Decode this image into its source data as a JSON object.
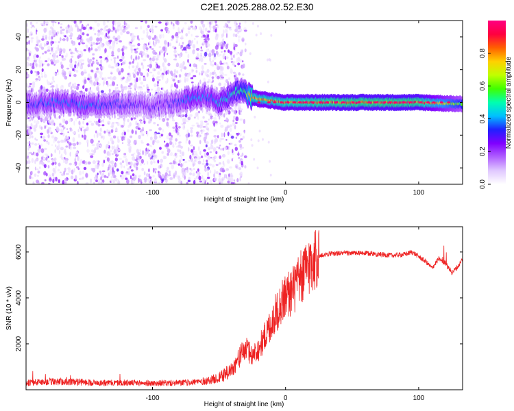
{
  "title": "C2E1.2025.288.02.52.E30",
  "chart_data": [
    {
      "type": "heatmap",
      "xlabel": "Height of straight line (km)",
      "ylabel": "Frequency (Hz)",
      "xlim": [
        -195,
        133
      ],
      "ylim": [
        -50,
        50
      ],
      "x_ticks": [
        -100,
        0,
        100
      ],
      "y_ticks": [
        -40,
        -20,
        0,
        20,
        40
      ],
      "colorbar": {
        "label": "Normalized spectral amplitude",
        "range": [
          0,
          1
        ],
        "ticks": [
          "0.0",
          "0.2",
          "0.4",
          "0.6",
          "0.8"
        ],
        "colormap": [
          "#ffffff",
          "#e0c8ff",
          "#b060ff",
          "#8000ff",
          "#2020ff",
          "#00c0ff",
          "#00ffb0",
          "#40ff00",
          "#c0ff00",
          "#ffd000",
          "#ff6000",
          "#ff0040",
          "#ff0080"
        ]
      },
      "ridge": {
        "description_points_x": [
          -195,
          -170,
          -150,
          -130,
          -110,
          -100,
          -90,
          -80,
          -70,
          -60,
          -50,
          -40,
          -35,
          -30,
          -25,
          -20,
          0,
          50,
          100,
          133
        ],
        "center_freq": [
          -1,
          0,
          -2,
          -1,
          -1,
          -3,
          -1,
          0,
          3,
          4,
          0,
          5,
          8,
          6,
          3,
          2,
          0,
          0,
          0,
          -1
        ],
        "amplitude": [
          0.35,
          0.4,
          0.4,
          0.35,
          0.3,
          0.3,
          0.3,
          0.35,
          0.45,
          0.4,
          0.45,
          0.5,
          0.55,
          0.6,
          0.9,
          0.85,
          0.9,
          0.95,
          0.95,
          0.6
        ]
      }
    },
    {
      "type": "line",
      "xlabel": "Height of straight line (km)",
      "ylabel": "SNR (10 * v/v)",
      "xlim": [
        -195,
        133
      ],
      "ylim": [
        0,
        7100
      ],
      "x_ticks": [
        -100,
        0,
        100
      ],
      "y_ticks": [
        2000,
        4000,
        6000
      ],
      "color": "#ee2222",
      "series": [
        {
          "name": "SNR",
          "x": [
            -195,
            -180,
            -160,
            -140,
            -120,
            -100,
            -80,
            -70,
            -60,
            -50,
            -45,
            -40,
            -35,
            -30,
            -25,
            -20,
            -15,
            -10,
            -5,
            0,
            5,
            10,
            15,
            20,
            25,
            30,
            40,
            50,
            60,
            70,
            80,
            90,
            95,
            100,
            105,
            110,
            115,
            120,
            125,
            130,
            133
          ],
          "y": [
            300,
            350,
            350,
            300,
            300,
            280,
            300,
            330,
            380,
            500,
            700,
            900,
            1400,
            1800,
            1500,
            1800,
            2400,
            3000,
            3600,
            4100,
            4300,
            4700,
            5200,
            5600,
            5800,
            5900,
            5950,
            5950,
            5950,
            5900,
            5850,
            5900,
            6000,
            5800,
            5600,
            5300,
            5700,
            5500,
            5100,
            5400,
            5700
          ]
        }
      ]
    }
  ]
}
